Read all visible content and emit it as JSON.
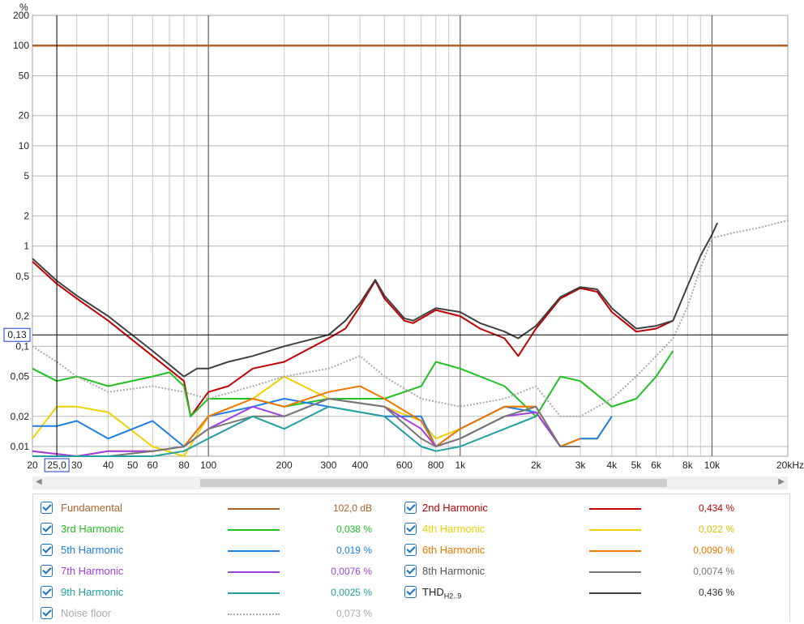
{
  "chart_data": {
    "type": "line",
    "ylabel": "%",
    "xlabel_unit": "kHz",
    "x_scale": "log",
    "y_scale": "log",
    "xlim": [
      20,
      20000
    ],
    "ylim": [
      0.008,
      200
    ],
    "grid": true,
    "x_ticks": [
      {
        "v": 20,
        "label": "20"
      },
      {
        "v": 30,
        "label": "30"
      },
      {
        "v": 40,
        "label": "40"
      },
      {
        "v": 50,
        "label": "50"
      },
      {
        "v": 60,
        "label": "60"
      },
      {
        "v": 80,
        "label": "80"
      },
      {
        "v": 100,
        "label": "100"
      },
      {
        "v": 200,
        "label": "200"
      },
      {
        "v": 300,
        "label": "300"
      },
      {
        "v": 400,
        "label": "400"
      },
      {
        "v": 600,
        "label": "600"
      },
      {
        "v": 800,
        "label": "800"
      },
      {
        "v": 1000,
        "label": "1k"
      },
      {
        "v": 2000,
        "label": "2k"
      },
      {
        "v": 3000,
        "label": "3k"
      },
      {
        "v": 4000,
        "label": "4k"
      },
      {
        "v": 5000,
        "label": "5k"
      },
      {
        "v": 6000,
        "label": "6k"
      },
      {
        "v": 8000,
        "label": "8k"
      },
      {
        "v": 10000,
        "label": "10k"
      },
      {
        "v": 20000,
        "label": "20kHz"
      }
    ],
    "y_ticks": [
      {
        "v": 200,
        "label": "200"
      },
      {
        "v": 100,
        "label": "100"
      },
      {
        "v": 50,
        "label": "50"
      },
      {
        "v": 20,
        "label": "20"
      },
      {
        "v": 10,
        "label": "10"
      },
      {
        "v": 5,
        "label": "5"
      },
      {
        "v": 2,
        "label": "2"
      },
      {
        "v": 1,
        "label": "1"
      },
      {
        "v": 0.5,
        "label": "0,5"
      },
      {
        "v": 0.2,
        "label": "0,2"
      },
      {
        "v": 0.1,
        "label": "0,1"
      },
      {
        "v": 0.05,
        "label": "0,05"
      },
      {
        "v": 0.02,
        "label": "0,02"
      },
      {
        "v": 0.01,
        "label": "0,01"
      }
    ],
    "cursor": {
      "x": 25,
      "x_label": "25,0",
      "y": 0.13,
      "y_label": "0,13"
    },
    "series": [
      {
        "name": "Fundamental",
        "color": "#b0602a",
        "value": "102,0 dB",
        "x": [
          20,
          20000
        ],
        "y": [
          100,
          100
        ]
      },
      {
        "name": "2nd Harmonic",
        "color": "#c00000",
        "value": "0,434 %",
        "x": [
          20,
          25,
          30,
          40,
          60,
          80,
          85,
          100,
          120,
          150,
          200,
          300,
          350,
          400,
          460,
          500,
          600,
          650,
          800,
          1000,
          1200,
          1500,
          1700,
          2000,
          2500,
          3000,
          3500,
          4000,
          5000,
          6000,
          7000
        ],
        "y": [
          0.7,
          0.42,
          0.3,
          0.18,
          0.08,
          0.045,
          0.02,
          0.035,
          0.04,
          0.06,
          0.07,
          0.12,
          0.15,
          0.25,
          0.45,
          0.3,
          0.18,
          0.17,
          0.23,
          0.2,
          0.15,
          0.12,
          0.08,
          0.15,
          0.3,
          0.38,
          0.35,
          0.22,
          0.14,
          0.15,
          0.18
        ]
      },
      {
        "name": "3rd Harmonic",
        "color": "#22c022",
        "value": "0,038 %",
        "x": [
          20,
          25,
          30,
          40,
          60,
          70,
          80,
          85,
          100,
          150,
          200,
          300,
          500,
          700,
          800,
          1000,
          1500,
          2000,
          2500,
          3000,
          4000,
          5000,
          6000,
          7000
        ],
        "y": [
          0.06,
          0.045,
          0.05,
          0.04,
          0.05,
          0.055,
          0.04,
          0.02,
          0.03,
          0.03,
          0.025,
          0.03,
          0.03,
          0.04,
          0.07,
          0.06,
          0.04,
          0.02,
          0.05,
          0.045,
          0.025,
          0.03,
          0.05,
          0.09
        ]
      },
      {
        "name": "4th Harmonic",
        "color": "#f0d000",
        "value": "0,022 %",
        "x": [
          20,
          25,
          30,
          40,
          60,
          80,
          100,
          150,
          200,
          300,
          500,
          700,
          800,
          1000,
          1500,
          2000,
          2500,
          3000,
          3500,
          4000
        ],
        "y": [
          0.012,
          0.025,
          0.025,
          0.022,
          0.01,
          0.008,
          0.02,
          0.03,
          0.05,
          0.03,
          0.025,
          0.018,
          0.012,
          0.015,
          0.025,
          0.025,
          0.01,
          0.012,
          0.012,
          0.02
        ]
      },
      {
        "name": "5th Harmonic",
        "color": "#1e7ee8",
        "value": "0,019 %",
        "x": [
          20,
          25,
          30,
          40,
          60,
          80,
          100,
          150,
          200,
          300,
          500,
          700,
          800,
          1000,
          1500,
          2000,
          2500,
          3000,
          3500,
          4000
        ],
        "y": [
          0.016,
          0.016,
          0.018,
          0.012,
          0.018,
          0.01,
          0.02,
          0.025,
          0.03,
          0.025,
          0.02,
          0.02,
          0.01,
          0.015,
          0.025,
          0.022,
          0.01,
          0.012,
          0.012,
          0.02
        ]
      },
      {
        "name": "6th Harmonic",
        "color": "#ee7700",
        "value": "0,0090 %",
        "x": [
          20,
          30,
          40,
          60,
          80,
          100,
          150,
          200,
          300,
          400,
          500,
          700,
          800,
          1000,
          1500,
          2000,
          2500,
          3000
        ],
        "y": [
          0.009,
          0.008,
          0.009,
          0.009,
          0.01,
          0.02,
          0.03,
          0.025,
          0.035,
          0.04,
          0.03,
          0.018,
          0.01,
          0.015,
          0.025,
          0.025,
          0.01,
          0.012
        ]
      },
      {
        "name": "7th Harmonic",
        "color": "#a040e0",
        "value": "0,0076 %",
        "x": [
          20,
          30,
          40,
          60,
          80,
          100,
          150,
          200,
          300,
          500,
          700,
          800,
          1000,
          1500,
          2000,
          2500,
          3000
        ],
        "y": [
          0.009,
          0.008,
          0.009,
          0.009,
          0.01,
          0.015,
          0.025,
          0.02,
          0.03,
          0.025,
          0.015,
          0.01,
          0.012,
          0.02,
          0.022,
          0.01,
          0.01
        ]
      },
      {
        "name": "8th Harmonic",
        "color": "#777777",
        "value": "0,0074 %",
        "x": [
          20,
          40,
          60,
          80,
          100,
          150,
          200,
          300,
          500,
          700,
          800,
          1000,
          1500,
          2000,
          2500,
          3000
        ],
        "y": [
          0.008,
          0.008,
          0.009,
          0.01,
          0.015,
          0.02,
          0.02,
          0.03,
          0.025,
          0.012,
          0.01,
          0.012,
          0.02,
          0.025,
          0.01,
          0.01
        ]
      },
      {
        "name": "9th Harmonic",
        "color": "#20a0a0",
        "value": "0,0025 %",
        "x": [
          20,
          40,
          60,
          80,
          100,
          150,
          200,
          300,
          500,
          700,
          800,
          1000,
          1500,
          2000
        ],
        "y": [
          0.008,
          0.008,
          0.008,
          0.009,
          0.012,
          0.02,
          0.015,
          0.025,
          0.02,
          0.01,
          0.009,
          0.01,
          0.015,
          0.02
        ]
      },
      {
        "name": "THD",
        "name_sub": "H2..9",
        "color": "#404040",
        "value": "0,436 %",
        "x": [
          20,
          25,
          30,
          40,
          60,
          80,
          90,
          100,
          120,
          150,
          200,
          300,
          350,
          400,
          460,
          500,
          600,
          650,
          800,
          1000,
          1200,
          1500,
          1700,
          2000,
          2500,
          3000,
          3500,
          4000,
          5000,
          6000,
          7000,
          8000,
          9000,
          10000,
          10500
        ],
        "y": [
          0.75,
          0.45,
          0.32,
          0.2,
          0.09,
          0.05,
          0.06,
          0.06,
          0.07,
          0.08,
          0.1,
          0.13,
          0.18,
          0.27,
          0.46,
          0.32,
          0.19,
          0.18,
          0.24,
          0.22,
          0.17,
          0.14,
          0.12,
          0.16,
          0.31,
          0.39,
          0.37,
          0.24,
          0.15,
          0.16,
          0.18,
          0.4,
          0.8,
          1.3,
          1.7
        ]
      },
      {
        "name": "Noise floor",
        "color": "#aaaaaa",
        "dashed": true,
        "value": "0,073 %",
        "x": [
          20,
          25,
          30,
          40,
          60,
          80,
          100,
          150,
          200,
          300,
          400,
          500,
          700,
          1000,
          1500,
          2000,
          2500,
          3000,
          4000,
          5000,
          6000,
          7000,
          8000,
          9000,
          10000,
          12000,
          15000,
          20000
        ],
        "y": [
          0.1,
          0.07,
          0.05,
          0.035,
          0.04,
          0.035,
          0.03,
          0.04,
          0.05,
          0.06,
          0.08,
          0.05,
          0.03,
          0.025,
          0.03,
          0.04,
          0.02,
          0.02,
          0.03,
          0.05,
          0.08,
          0.12,
          0.25,
          0.6,
          1.2,
          1.35,
          1.5,
          1.8
        ]
      }
    ]
  },
  "legend": {
    "rows": [
      [
        {
          "label": "Fundamental",
          "value": "102,0 dB",
          "color": "#b0602a",
          "val_color": "#b0602a"
        },
        {
          "label": "2nd Harmonic",
          "value": "0,434 %",
          "color": "#c00000",
          "val_color": "#c00000"
        }
      ],
      [
        {
          "label": "3rd Harmonic",
          "value": "0,038 %",
          "color": "#22c022",
          "val_color": "#22c022"
        },
        {
          "label": "4th Harmonic",
          "value": "0,022 %",
          "color": "#f0d000",
          "val_color": "#e0c000"
        }
      ],
      [
        {
          "label": "5th Harmonic",
          "value": "0,019 %",
          "color": "#1e7ee8",
          "val_color": "#1e7ee8"
        },
        {
          "label": "6th Harmonic",
          "value": "0,0090 %",
          "color": "#ee7700",
          "val_color": "#ee7700"
        }
      ],
      [
        {
          "label": "7th Harmonic",
          "value": "0,0076 %",
          "color": "#a040e0",
          "val_color": "#a040e0"
        },
        {
          "label": "8th Harmonic",
          "value": "0,0074 %",
          "color": "#777777",
          "val_color": "#777777"
        }
      ],
      [
        {
          "label": "9th Harmonic",
          "value": "0,0025 %",
          "color": "#20a0a0",
          "val_color": "#20a0a0"
        },
        {
          "label": "THD",
          "sub": "H2..9",
          "value": "0,436 %",
          "color": "#404040",
          "val_color": "#333333"
        }
      ],
      [
        {
          "label": "Noise floor",
          "value": "0,073 %",
          "color": "#aaaaaa",
          "val_color": "#aaaaaa",
          "dashed": true
        }
      ]
    ]
  }
}
